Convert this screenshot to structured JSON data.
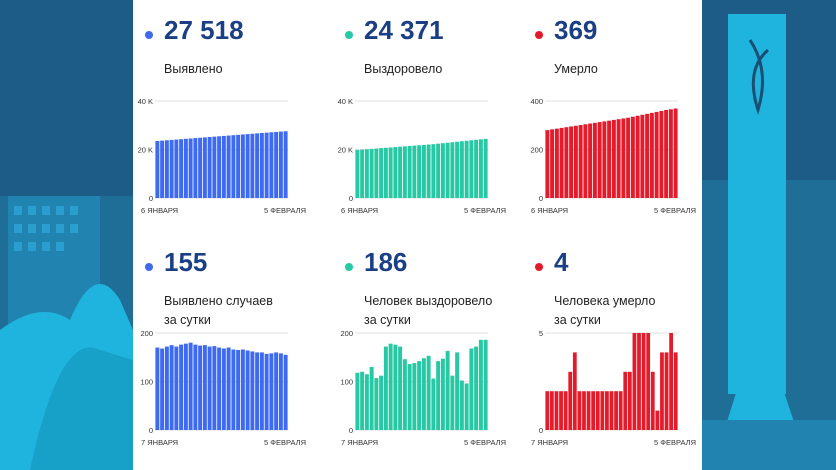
{
  "colors": {
    "blue": "#3d6af0",
    "teal": "#27c9a4",
    "red": "#e41b2b",
    "number": "#1a3f85",
    "background": "#1d5c86",
    "city_light": "#1fb4de"
  },
  "cards": [
    {
      "value": "27 518",
      "label_lines": [
        "Выявлено"
      ],
      "color": "blue",
      "chart_data": {
        "type": "bar",
        "x_start": "6 ЯНВАРЯ",
        "x_end": "5 ФЕВРАЛЯ",
        "yticks": [
          "0",
          "20 K",
          "40 K"
        ],
        "ylim": [
          0,
          40000
        ],
        "grid": true,
        "values": [
          23500,
          23650,
          23800,
          23950,
          24100,
          24250,
          24400,
          24550,
          24700,
          24850,
          25000,
          25150,
          25300,
          25450,
          25600,
          25750,
          25900,
          26050,
          26200,
          26350,
          26500,
          26650,
          26800,
          26950,
          27100,
          27250,
          27400,
          27518
        ]
      }
    },
    {
      "value": "24 371",
      "label_lines": [
        "Выздоровело"
      ],
      "color": "teal",
      "chart_data": {
        "type": "bar",
        "x_start": "6 ЯНВАРЯ",
        "x_end": "5 ФЕВРАЛЯ",
        "yticks": [
          "0",
          "20 K",
          "40 K"
        ],
        "ylim": [
          0,
          40000
        ],
        "grid": true,
        "values": [
          19800,
          19950,
          20100,
          20250,
          20400,
          20550,
          20700,
          20850,
          21000,
          21150,
          21300,
          21450,
          21600,
          21750,
          21900,
          22050,
          22200,
          22400,
          22600,
          22800,
          23000,
          23200,
          23400,
          23600,
          23800,
          24000,
          24200,
          24371
        ]
      }
    },
    {
      "value": "369",
      "label_lines": [
        "Умерло"
      ],
      "color": "red",
      "chart_data": {
        "type": "bar",
        "x_start": "6 ЯНВАРЯ",
        "x_end": "5 ФЕВРАЛЯ",
        "yticks": [
          "0",
          "200",
          "400"
        ],
        "ylim": [
          0,
          400
        ],
        "grid": true,
        "values": [
          280,
          283,
          286,
          289,
          292,
          295,
          298,
          301,
          304,
          307,
          310,
          313,
          316,
          319,
          322,
          325,
          328,
          331,
          335,
          339,
          343,
          347,
          351,
          355,
          359,
          363,
          366,
          369
        ]
      }
    },
    {
      "value": "155",
      "label_lines": [
        "Выявлено случаев",
        "за сутки"
      ],
      "color": "blue",
      "chart_data": {
        "type": "bar",
        "x_start": "7 ЯНВАРЯ",
        "x_end": "5 ФЕВРАЛЯ",
        "yticks": [
          "0",
          "100",
          "200"
        ],
        "ylim": [
          0,
          200
        ],
        "grid": true,
        "values": [
          170,
          168,
          172,
          175,
          172,
          176,
          178,
          180,
          176,
          174,
          175,
          172,
          173,
          170,
          168,
          170,
          166,
          165,
          166,
          164,
          162,
          160,
          160,
          157,
          158,
          160,
          158,
          155
        ]
      }
    },
    {
      "value": "186",
      "label_lines": [
        "Человек выздоровело",
        "за сутки"
      ],
      "color": "teal",
      "chart_data": {
        "type": "bar",
        "x_start": "7 ЯНВАРЯ",
        "x_end": "5 ФЕВРАЛЯ",
        "yticks": [
          "0",
          "100",
          "200"
        ],
        "ylim": [
          0,
          200
        ],
        "grid": true,
        "values": [
          118,
          120,
          115,
          130,
          107,
          112,
          172,
          178,
          176,
          172,
          146,
          136,
          138,
          142,
          148,
          153,
          106,
          142,
          147,
          163,
          112,
          160,
          102,
          96,
          168,
          172,
          186,
          186
        ]
      }
    },
    {
      "value": "4",
      "label_lines": [
        "Человека умерло",
        "за сутки"
      ],
      "color": "red",
      "chart_data": {
        "type": "bar",
        "x_start": "7 ЯНВАРЯ",
        "x_end": "5 ФЕВРАЛЯ",
        "yticks": [
          "0",
          "5"
        ],
        "ylim": [
          0,
          5
        ],
        "grid": true,
        "values": [
          2,
          2,
          2,
          2,
          2,
          3,
          4,
          2,
          2,
          2,
          2,
          2,
          2,
          2,
          2,
          2,
          2,
          3,
          3,
          5,
          5,
          5,
          5,
          3,
          1,
          4,
          4,
          5,
          4
        ]
      }
    }
  ]
}
